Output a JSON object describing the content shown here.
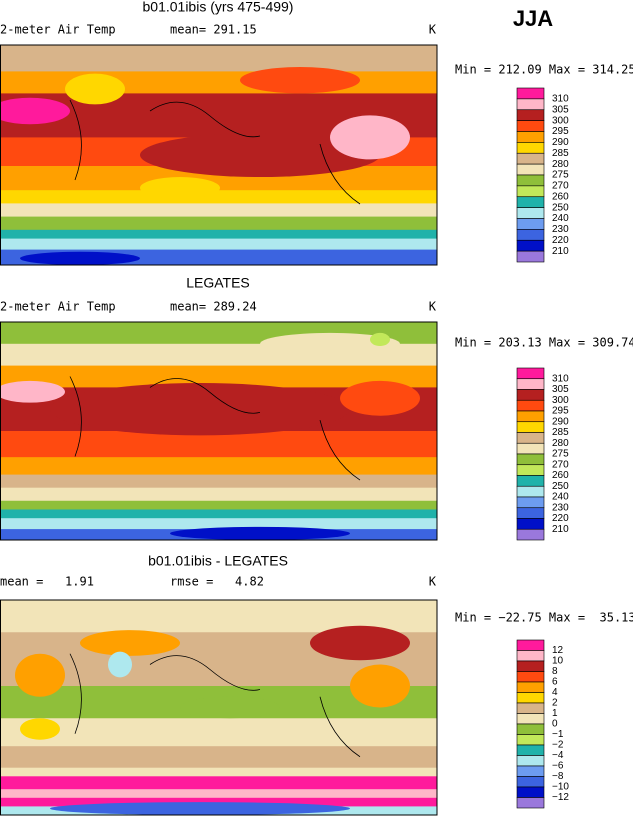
{
  "header": {
    "season": "JJA"
  },
  "panels": [
    {
      "title": "b01.01ibis (yrs 475-499)",
      "labels": [
        "2-meter Air Temp",
        "mean= 291.15"
      ],
      "unit": "K",
      "range": "Min = 212.09 Max = 314.25",
      "legend": {
        "labels": [
          "310",
          "305",
          "300",
          "295",
          "290",
          "285",
          "280",
          "275",
          "270",
          "260",
          "250",
          "240",
          "230",
          "220",
          "210"
        ],
        "colors": [
          "#ff1a9c",
          "#ffb6c8",
          "#b52020",
          "#ff4a10",
          "#ffa000",
          "#ffd700",
          "#d8b48a",
          "#f2e4b8",
          "#8fbf3a",
          "#c2e85a",
          "#20b2aa",
          "#aee8ee",
          "#6d9cf0",
          "#3c64e0",
          "#0010c8",
          "#9a78dc"
        ]
      }
    },
    {
      "title": "LEGATES",
      "labels": [
        "2-meter Air Temp",
        "mean= 289.24"
      ],
      "unit": "K",
      "range": "Min = 203.13 Max = 309.74",
      "legend": {
        "labels": [
          "310",
          "305",
          "300",
          "295",
          "290",
          "285",
          "280",
          "275",
          "270",
          "260",
          "250",
          "240",
          "230",
          "220",
          "210"
        ],
        "colors": [
          "#ff1a9c",
          "#ffb6c8",
          "#b52020",
          "#ff4a10",
          "#ffa000",
          "#ffd700",
          "#d8b48a",
          "#f2e4b8",
          "#8fbf3a",
          "#c2e85a",
          "#20b2aa",
          "#aee8ee",
          "#6d9cf0",
          "#3c64e0",
          "#0010c8",
          "#9a78dc"
        ]
      }
    },
    {
      "title": "b01.01ibis - LEGATES",
      "labels": [
        "mean =   1.91",
        "rmse =   4.82"
      ],
      "unit": "K",
      "range": "Min = −22.75 Max =  35.13",
      "legend": {
        "labels": [
          "12",
          "10",
          "8",
          "6",
          "4",
          "2",
          "1",
          "0",
          "−1",
          "−2",
          "−4",
          "−6",
          "−8",
          "−10",
          "−12"
        ],
        "colors": [
          "#ff1a9c",
          "#ffb6c8",
          "#b52020",
          "#ff4a10",
          "#ffa000",
          "#ffd700",
          "#d8b48a",
          "#f2e4b8",
          "#8fbf3a",
          "#c2e85a",
          "#20b2aa",
          "#aee8ee",
          "#6d9cf0",
          "#3c64e0",
          "#0010c8",
          "#9a78dc"
        ]
      }
    }
  ]
}
